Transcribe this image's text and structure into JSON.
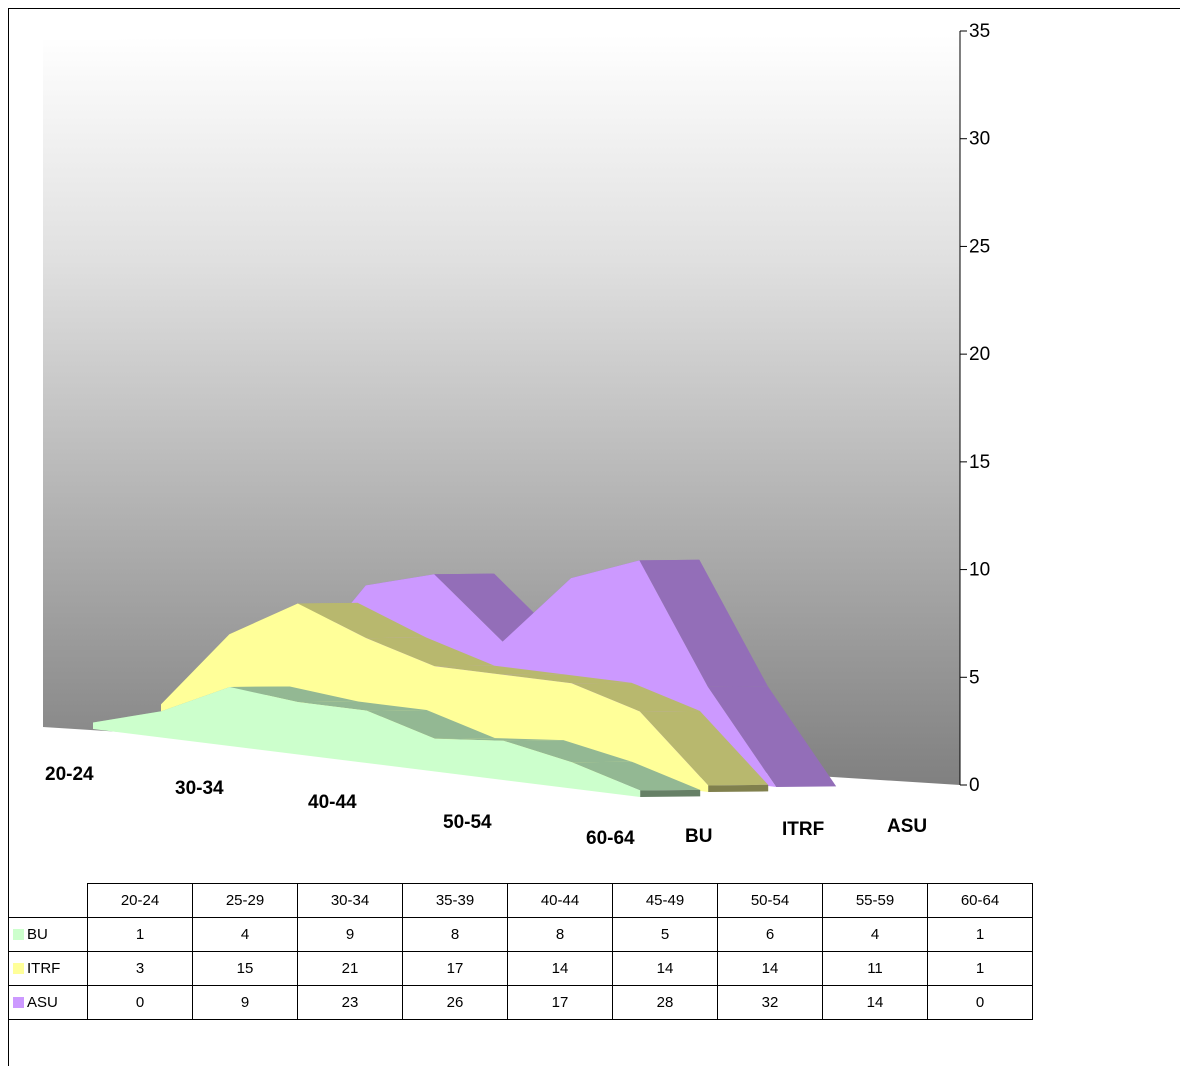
{
  "chart_data": {
    "type": "area",
    "subtype": "3d-area",
    "categories": [
      "20-24",
      "25-29",
      "30-34",
      "35-39",
      "40-44",
      "45-49",
      "50-54",
      "55-59",
      "60-64"
    ],
    "axis_category_labels": [
      "20-24",
      "30-34",
      "40-44",
      "50-54",
      "60-64"
    ],
    "series": [
      {
        "name": "BU",
        "values": [
          1,
          4,
          9,
          8,
          8,
          5,
          6,
          4,
          1
        ],
        "color": "#ccffcc"
      },
      {
        "name": "ITRF",
        "values": [
          3,
          15,
          21,
          17,
          14,
          14,
          14,
          11,
          1
        ],
        "color": "#ffff99"
      },
      {
        "name": "ASU",
        "values": [
          0,
          9,
          23,
          26,
          17,
          28,
          32,
          14,
          0
        ],
        "color": "#cc99ff"
      }
    ],
    "yticks": [
      "0",
      "5",
      "10",
      "15",
      "20",
      "25",
      "30",
      "35"
    ],
    "ylim": [
      0,
      35
    ],
    "legend": "data-table-below",
    "grid": false
  }
}
